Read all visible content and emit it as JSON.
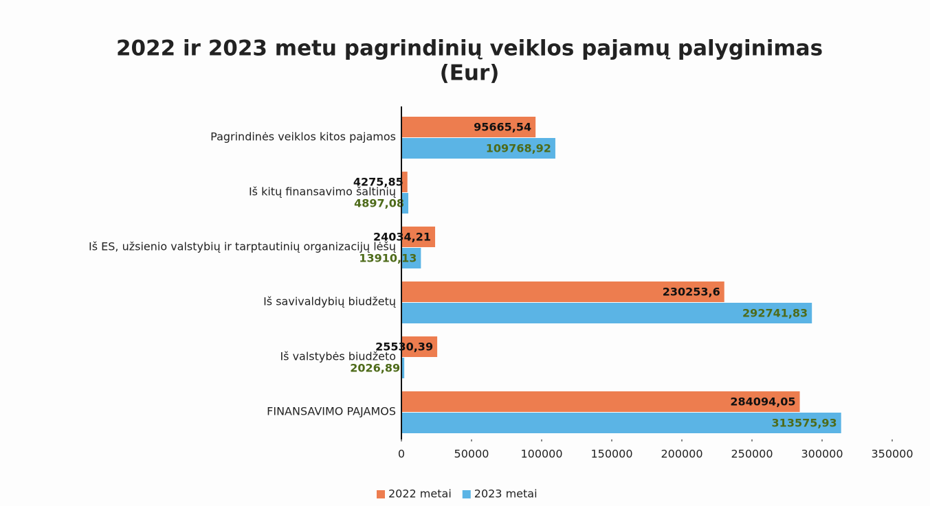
{
  "chart_data": {
    "type": "barh",
    "title": [
      "2022 ir 2023 metu pagrindinių veiklos pajamų palyginimas",
      "(Eur)"
    ],
    "categories": [
      "Pagrindinės veiklos kitos pajamos",
      "Iš kitų finansavimo šaltinių",
      "Iš ES, užsienio valstybių ir tarptautinių organizacijų lėšų",
      "Iš savivaldybių biudžetų",
      "Iš valstybės biudžeto",
      "FINANSAVIMO PAJAMOS"
    ],
    "series": [
      {
        "name": "2022 metai",
        "color": "#ed7d4f",
        "label_color": "#111111",
        "values": [
          95665.54,
          4275.85,
          24034.21,
          230253.6,
          25530.39,
          284094.05
        ],
        "value_labels": [
          "95665,54",
          "4275,85",
          "24034,21",
          "230253,6",
          "25530,39",
          "284094,05"
        ]
      },
      {
        "name": "2023 metai",
        "color": "#5bb4e5",
        "label_color": "#4e6b1a",
        "values": [
          109768.92,
          4897.08,
          13910.13,
          292741.83,
          2026.89,
          313575.93
        ],
        "value_labels": [
          "109768,92",
          "4897,08",
          "13910,13",
          "292741,83",
          "2026,89",
          "313575,93"
        ]
      }
    ],
    "xlim": [
      0,
      350000
    ],
    "xticks": [
      0,
      50000,
      100000,
      150000,
      200000,
      250000,
      300000,
      350000
    ],
    "legend": "bottom"
  }
}
